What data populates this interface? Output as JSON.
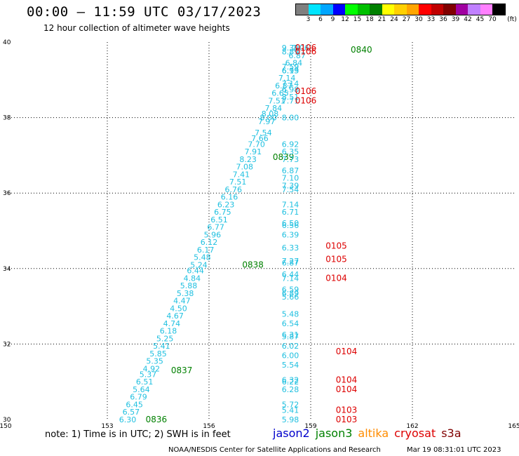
{
  "header": {
    "title": "00:00 – 11:59 UTC 03/17/2023",
    "subtitle": "12 hour collection of altimeter wave heights"
  },
  "colorbar": {
    "colors": [
      "#7f7f7f",
      "#00e5ff",
      "#00a6ff",
      "#0000ff",
      "#00ff00",
      "#00c000",
      "#008000",
      "#ffff00",
      "#ffd000",
      "#ffa500",
      "#ff0000",
      "#c00000",
      "#800000",
      "#a000a0",
      "#c080ff",
      "#ff80ff",
      "#000000"
    ],
    "labels": [
      "3",
      "6",
      "9",
      "12",
      "15",
      "18",
      "21",
      "24",
      "27",
      "30",
      "33",
      "36",
      "39",
      "42",
      "45",
      "70"
    ],
    "unit": "(ft)"
  },
  "footer": {
    "note": "note:  1) Time is in UTC;  2) SWH is in feet",
    "legend": [
      {
        "name": "jason2",
        "color": "#0000cc"
      },
      {
        "name": "jason3",
        "color": "#008000"
      },
      {
        "name": "altika",
        "color": "#ff8c00"
      },
      {
        "name": "cryosat",
        "color": "#dd0000"
      },
      {
        "name": "s3a",
        "color": "#800000"
      }
    ],
    "credit": "NOAA/NESDIS Center for Satellite Applications and Research",
    "timestamp": "Mar 19 08:31:01 UTC 2023"
  },
  "chart_data": {
    "type": "scatter",
    "xlim": [
      150,
      165
    ],
    "ylim": [
      30,
      40
    ],
    "x_ticks": [
      "150",
      "153",
      "156",
      "159",
      "162",
      "165"
    ],
    "y_ticks": [
      "30",
      "32",
      "34",
      "36",
      "38",
      "40"
    ],
    "grid": true,
    "series": [
      {
        "name": "jason3",
        "color": "#008000",
        "labels": [
          {
            "lon": 156.8,
            "lat": 34.1,
            "text": "0838"
          },
          {
            "lon": 157.7,
            "lat": 36.95,
            "text": "0839"
          },
          {
            "lon": 160.0,
            "lat": 39.8,
            "text": "0840"
          },
          {
            "lon": 154.7,
            "lat": 31.3,
            "text": "0837"
          },
          {
            "lon": 153.95,
            "lat": 30.0,
            "text": "0836"
          }
        ],
        "track": [
          {
            "lon": 153.6,
            "lat": 30.0,
            "text": "6.30"
          },
          {
            "lon": 153.7,
            "lat": 30.2,
            "text": "6.57"
          },
          {
            "lon": 153.8,
            "lat": 30.4,
            "text": "6.45"
          },
          {
            "lon": 153.92,
            "lat": 30.6,
            "text": "6.79"
          },
          {
            "lon": 154.0,
            "lat": 30.8,
            "text": "5.64"
          },
          {
            "lon": 154.1,
            "lat": 31.0,
            "text": "6.51"
          },
          {
            "lon": 154.2,
            "lat": 31.2,
            "text": "5.37"
          },
          {
            "lon": 154.3,
            "lat": 31.35,
            "text": "4.92"
          },
          {
            "lon": 154.4,
            "lat": 31.55,
            "text": "5.35"
          },
          {
            "lon": 154.5,
            "lat": 31.75,
            "text": "5.85"
          },
          {
            "lon": 154.6,
            "lat": 31.95,
            "text": "5.41"
          },
          {
            "lon": 154.7,
            "lat": 32.15,
            "text": "5.25"
          },
          {
            "lon": 154.8,
            "lat": 32.35,
            "text": "6.18"
          },
          {
            "lon": 154.9,
            "lat": 32.55,
            "text": "4.74"
          },
          {
            "lon": 155.0,
            "lat": 32.75,
            "text": "4.67"
          },
          {
            "lon": 155.1,
            "lat": 32.95,
            "text": "4.50"
          },
          {
            "lon": 155.2,
            "lat": 33.15,
            "text": "4.47"
          },
          {
            "lon": 155.3,
            "lat": 33.35,
            "text": "5.38"
          },
          {
            "lon": 155.4,
            "lat": 33.55,
            "text": "5.88"
          },
          {
            "lon": 155.5,
            "lat": 33.75,
            "text": "4.84"
          },
          {
            "lon": 155.6,
            "lat": 33.95,
            "text": "6.44"
          },
          {
            "lon": 155.7,
            "lat": 34.1,
            "text": "5.24"
          },
          {
            "lon": 155.8,
            "lat": 34.3,
            "text": "5.48"
          },
          {
            "lon": 155.9,
            "lat": 34.5,
            "text": "6.17"
          },
          {
            "lon": 156.0,
            "lat": 34.7,
            "text": "6.12"
          },
          {
            "lon": 156.1,
            "lat": 34.9,
            "text": "5.96"
          },
          {
            "lon": 156.2,
            "lat": 35.1,
            "text": "6.77"
          },
          {
            "lon": 156.3,
            "lat": 35.3,
            "text": "6.51"
          },
          {
            "lon": 156.4,
            "lat": 35.5,
            "text": "6.75"
          },
          {
            "lon": 156.5,
            "lat": 35.7,
            "text": "6.23"
          },
          {
            "lon": 156.6,
            "lat": 35.9,
            "text": "6.16"
          },
          {
            "lon": 156.72,
            "lat": 36.1,
            "text": "6.76"
          },
          {
            "lon": 156.85,
            "lat": 36.3,
            "text": "7.51"
          },
          {
            "lon": 156.95,
            "lat": 36.5,
            "text": "7.41"
          },
          {
            "lon": 157.05,
            "lat": 36.7,
            "text": "7.08"
          },
          {
            "lon": 157.15,
            "lat": 36.9,
            "text": "8.23"
          },
          {
            "lon": 157.3,
            "lat": 37.1,
            "text": "7.91"
          },
          {
            "lon": 157.4,
            "lat": 37.3,
            "text": "7.70"
          },
          {
            "lon": 157.5,
            "lat": 37.45,
            "text": "7.66"
          },
          {
            "lon": 157.6,
            "lat": 37.6,
            "text": "7.54"
          },
          {
            "lon": 157.7,
            "lat": 37.9,
            "text": "7.97"
          },
          {
            "lon": 157.75,
            "lat": 38.0,
            "text": "8.00"
          },
          {
            "lon": 157.8,
            "lat": 38.1,
            "text": "8.08"
          },
          {
            "lon": 157.9,
            "lat": 38.25,
            "text": "7.84"
          },
          {
            "lon": 158.0,
            "lat": 38.45,
            "text": "7.51"
          },
          {
            "lon": 158.1,
            "lat": 38.65,
            "text": "6.65"
          },
          {
            "lon": 158.2,
            "lat": 38.85,
            "text": "6.87"
          },
          {
            "lon": 158.3,
            "lat": 39.05,
            "text": "7.14"
          },
          {
            "lon": 158.4,
            "lat": 39.25,
            "text": "6.13"
          },
          {
            "lon": 158.5,
            "lat": 39.45,
            "text": "6.84"
          },
          {
            "lon": 158.6,
            "lat": 39.65,
            "text": "6.87"
          },
          {
            "lon": 158.7,
            "lat": 39.85,
            "text": "7.06"
          }
        ]
      },
      {
        "name": "cryosat",
        "color": "#dd0000",
        "labels": [
          {
            "lon": 158.4,
            "lat": 39.85,
            "text": "0106"
          },
          {
            "lon": 158.4,
            "lat": 39.75,
            "text": "0106"
          },
          {
            "lon": 158.4,
            "lat": 38.7,
            "text": "0106"
          },
          {
            "lon": 158.4,
            "lat": 38.45,
            "text": "0106"
          },
          {
            "lon": 159.3,
            "lat": 34.6,
            "text": "0105"
          },
          {
            "lon": 159.3,
            "lat": 34.25,
            "text": "0105"
          },
          {
            "lon": 159.3,
            "lat": 33.75,
            "text": "0104"
          },
          {
            "lon": 159.6,
            "lat": 31.8,
            "text": "0104"
          },
          {
            "lon": 159.6,
            "lat": 31.05,
            "text": "0104"
          },
          {
            "lon": 159.6,
            "lat": 30.8,
            "text": "0104"
          },
          {
            "lon": 159.6,
            "lat": 30.25,
            "text": "0103"
          },
          {
            "lon": 159.6,
            "lat": 30.0,
            "text": "0103"
          }
        ],
        "track": [
          {
            "lon": 158.4,
            "lat": 39.85,
            "text": "9.39"
          },
          {
            "lon": 158.4,
            "lat": 39.75,
            "text": "8.89"
          },
          {
            "lon": 158.4,
            "lat": 39.35,
            "text": "7.59"
          },
          {
            "lon": 158.4,
            "lat": 39.25,
            "text": "6.99"
          },
          {
            "lon": 158.4,
            "lat": 38.9,
            "text": "7.14"
          },
          {
            "lon": 158.4,
            "lat": 38.75,
            "text": "6.98"
          },
          {
            "lon": 158.4,
            "lat": 38.55,
            "text": "8.51"
          },
          {
            "lon": 158.4,
            "lat": 38.45,
            "text": "7.71"
          },
          {
            "lon": 158.4,
            "lat": 38.0,
            "text": "8.00"
          },
          {
            "lon": 158.4,
            "lat": 37.3,
            "text": "6.92"
          },
          {
            "lon": 158.4,
            "lat": 37.1,
            "text": "6.35"
          },
          {
            "lon": 158.4,
            "lat": 36.9,
            "text": "7.73"
          },
          {
            "lon": 158.4,
            "lat": 36.6,
            "text": "6.87"
          },
          {
            "lon": 158.4,
            "lat": 36.4,
            "text": "7.10"
          },
          {
            "lon": 158.4,
            "lat": 36.2,
            "text": "7.39"
          },
          {
            "lon": 158.4,
            "lat": 36.1,
            "text": "7.54"
          },
          {
            "lon": 158.4,
            "lat": 35.7,
            "text": "7.14"
          },
          {
            "lon": 158.4,
            "lat": 35.5,
            "text": "6.71"
          },
          {
            "lon": 158.4,
            "lat": 35.2,
            "text": "6.50"
          },
          {
            "lon": 158.4,
            "lat": 35.15,
            "text": "6.56"
          },
          {
            "lon": 158.4,
            "lat": 34.9,
            "text": "6.39"
          },
          {
            "lon": 158.4,
            "lat": 34.55,
            "text": "6.33"
          },
          {
            "lon": 158.4,
            "lat": 34.2,
            "text": "7.27"
          },
          {
            "lon": 158.4,
            "lat": 34.15,
            "text": "6.87"
          },
          {
            "lon": 158.4,
            "lat": 33.85,
            "text": "6.44"
          },
          {
            "lon": 158.4,
            "lat": 33.75,
            "text": "7.14"
          },
          {
            "lon": 158.4,
            "lat": 33.45,
            "text": "6.59"
          },
          {
            "lon": 158.4,
            "lat": 33.35,
            "text": "6.89"
          },
          {
            "lon": 158.4,
            "lat": 33.25,
            "text": "5.66"
          },
          {
            "lon": 158.4,
            "lat": 32.8,
            "text": "5.48"
          },
          {
            "lon": 158.4,
            "lat": 32.55,
            "text": "6.54"
          },
          {
            "lon": 158.4,
            "lat": 32.25,
            "text": "6.31"
          },
          {
            "lon": 158.4,
            "lat": 32.2,
            "text": "5.87"
          },
          {
            "lon": 158.4,
            "lat": 31.95,
            "text": "6.02"
          },
          {
            "lon": 158.4,
            "lat": 31.7,
            "text": "6.00"
          },
          {
            "lon": 158.4,
            "lat": 31.45,
            "text": "5.54"
          },
          {
            "lon": 158.4,
            "lat": 31.05,
            "text": "6.32"
          },
          {
            "lon": 158.4,
            "lat": 31.0,
            "text": "6.22"
          },
          {
            "lon": 158.4,
            "lat": 30.8,
            "text": "6.28"
          },
          {
            "lon": 158.4,
            "lat": 30.4,
            "text": "5.72"
          },
          {
            "lon": 158.4,
            "lat": 30.25,
            "text": "5.41"
          },
          {
            "lon": 158.4,
            "lat": 30.0,
            "text": "5.98"
          }
        ]
      }
    ]
  }
}
